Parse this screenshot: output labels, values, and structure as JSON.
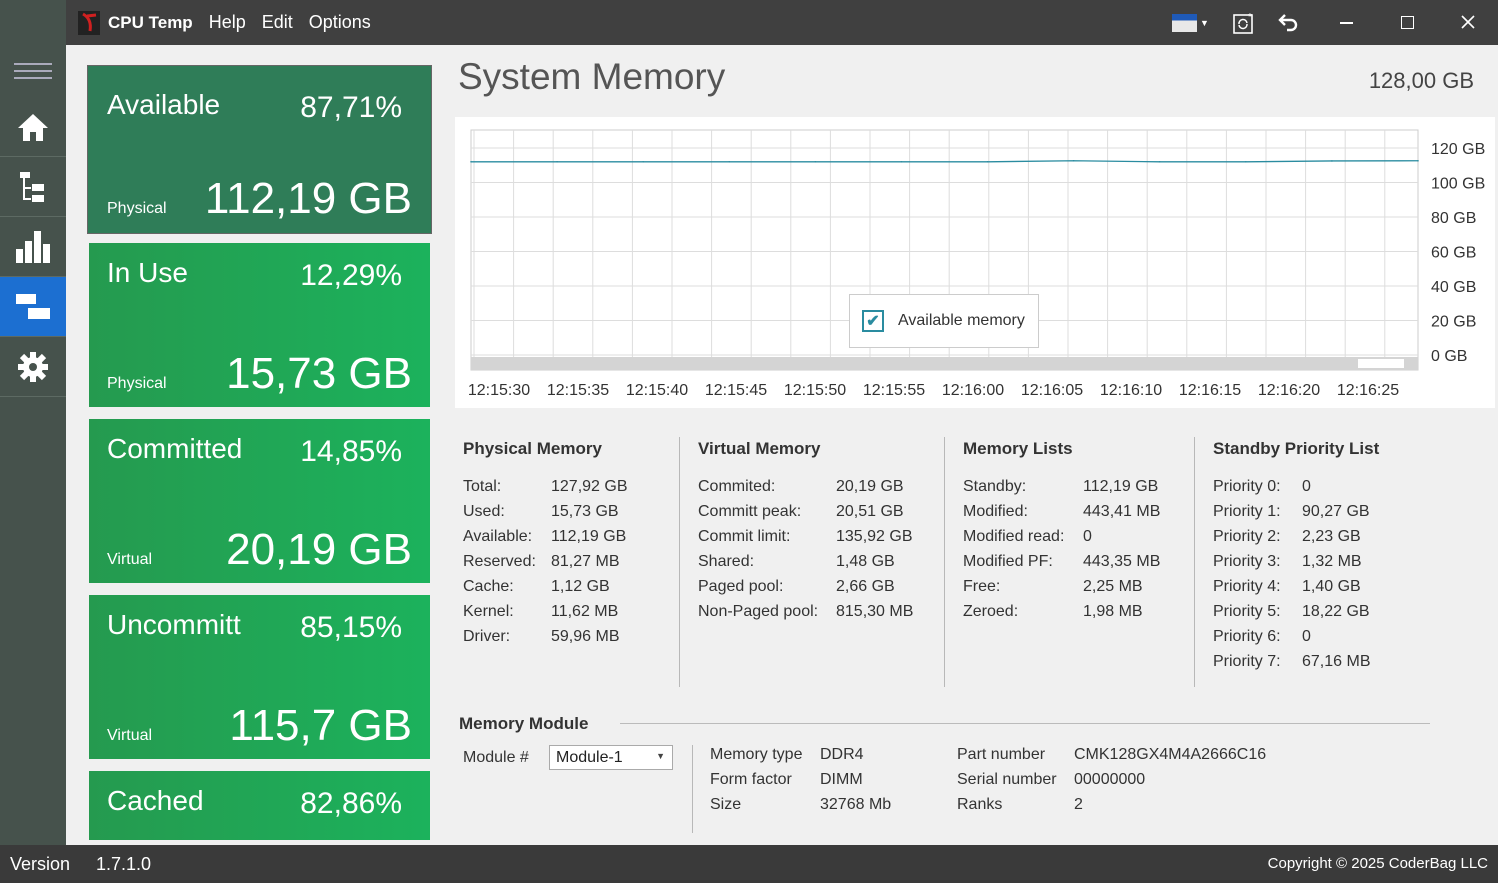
{
  "app": {
    "title": "CPU Temp",
    "menu": [
      "Help",
      "Edit",
      "Options"
    ]
  },
  "titlebar_icons": [
    "flag-dropdown-icon",
    "refresh-window-icon",
    "undo-icon",
    "minimize-icon",
    "maximize-icon",
    "close-icon"
  ],
  "sidebar": [
    "menu-icon",
    "home-icon",
    "tree-icon",
    "bar-chart-icon",
    "memory-icon",
    "gear-icon"
  ],
  "page": {
    "title": "System Memory",
    "total": "128,00 GB"
  },
  "tiles": [
    {
      "title": "Available",
      "percent": "87,71%",
      "sub": "Physical",
      "value": "112,19 GB"
    },
    {
      "title": "In Use",
      "percent": "12,29%",
      "sub": "Physical",
      "value": "15,73 GB"
    },
    {
      "title": "Committed",
      "percent": "14,85%",
      "sub": "Virtual",
      "value": "20,19 GB"
    },
    {
      "title": "Uncommitt",
      "percent": "85,15%",
      "sub": "Virtual",
      "value": "115,7 GB"
    },
    {
      "title": "Cached",
      "percent": "82,86%"
    }
  ],
  "chart_data": {
    "type": "line",
    "x": [
      "12:15:30",
      "12:15:35",
      "12:15:40",
      "12:15:45",
      "12:15:50",
      "12:15:55",
      "12:16:00",
      "12:16:05",
      "12:16:10",
      "12:16:15",
      "12:16:20",
      "12:16:25"
    ],
    "series": [
      {
        "name": "Available memory",
        "values": [
          112.0,
          112.0,
          112.0,
          112.0,
          112.0,
          112.0,
          112.0,
          112.6,
          112.0,
          112.0,
          112.5,
          112.6
        ]
      }
    ],
    "yticks": [
      "120 GB",
      "100 GB",
      "80 GB",
      "60 GB",
      "40 GB",
      "20 GB",
      "0 GB"
    ],
    "ylim": [
      0,
      120
    ],
    "grid": true,
    "legend": "bottom-center",
    "color": "#2a8ca0"
  },
  "physical": {
    "title": "Physical Memory",
    "rows": [
      [
        "Total:",
        "127,92 GB"
      ],
      [
        "Used:",
        "15,73 GB"
      ],
      [
        "Available:",
        "112,19 GB"
      ],
      [
        "Reserved:",
        "81,27 MB"
      ],
      [
        "Cache:",
        "1,12 GB"
      ],
      [
        "Kernel:",
        "11,62 MB"
      ],
      [
        "Driver:",
        "59,96 MB"
      ]
    ]
  },
  "virtual": {
    "title": "Virtual Memory",
    "rows": [
      [
        "Commited:",
        "20,19 GB"
      ],
      [
        "Committ peak:",
        "20,51 GB"
      ],
      [
        "Commit limit:",
        "135,92 GB"
      ],
      [
        "Shared:",
        "1,48 GB"
      ],
      [
        "Paged pool:",
        "2,66 GB"
      ],
      [
        "Non-Paged pool:",
        "815,30 MB"
      ]
    ]
  },
  "lists": {
    "title": "Memory Lists",
    "rows": [
      [
        "Standby:",
        "112,19 GB"
      ],
      [
        "Modified:",
        "443,41 MB"
      ],
      [
        "Modified read:",
        "0"
      ],
      [
        "Modified PF:",
        "443,35 MB"
      ],
      [
        "Free:",
        "2,25 MB"
      ],
      [
        "Zeroed:",
        "1,98 MB"
      ]
    ]
  },
  "standby": {
    "title": "Standby Priority List",
    "rows": [
      [
        "Priority 0:",
        "0"
      ],
      [
        "Priority 1:",
        "90,27 GB"
      ],
      [
        "Priority 2:",
        "2,23 GB"
      ],
      [
        "Priority 3:",
        "1,32 MB"
      ],
      [
        "Priority 4:",
        "1,40 GB"
      ],
      [
        "Priority 5:",
        "18,22 GB"
      ],
      [
        "Priority 6:",
        "0"
      ],
      [
        "Priority 7:",
        "67,16 MB"
      ]
    ]
  },
  "module": {
    "title": "Memory Module",
    "label": "Module #",
    "selected": "Module-1",
    "left": [
      [
        "Memory type",
        "DDR4"
      ],
      [
        "Form factor",
        "DIMM"
      ],
      [
        "Size",
        "32768 Mb"
      ]
    ],
    "right": [
      [
        "Part number",
        "CMK128GX4M4A2666C16"
      ],
      [
        "Serial number",
        "00000000"
      ],
      [
        "Ranks",
        "2"
      ]
    ]
  },
  "status": {
    "version_label": "Version",
    "version": "1.7.1.0",
    "copyright": "Copyright © 2025 CoderBag LLC"
  }
}
